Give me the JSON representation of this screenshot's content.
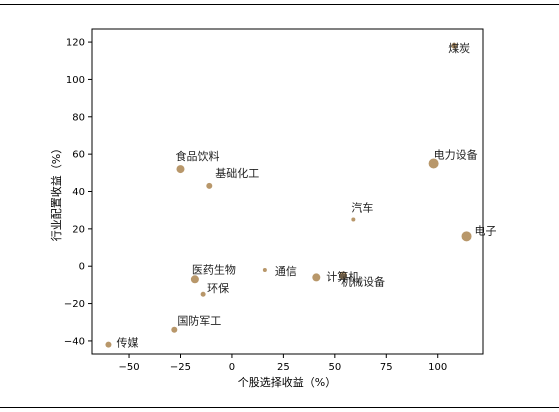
{
  "chart_data": {
    "type": "scatter",
    "xlabel": "个股选择收益（%）",
    "ylabel": "行业配置收益（%）",
    "xlim": [
      -68,
      122
    ],
    "ylim": [
      -47,
      127
    ],
    "xticks": [
      -50,
      -25,
      0,
      25,
      50,
      75,
      100
    ],
    "yticks": [
      -40,
      -20,
      0,
      20,
      40,
      60,
      80,
      100,
      120
    ],
    "grid": false,
    "marker_color": "#b8976a",
    "points": [
      {
        "label": "煤炭",
        "x": 108,
        "y": 118,
        "size": 3
      },
      {
        "label": "电力设备",
        "x": 98,
        "y": 55,
        "size": 5
      },
      {
        "label": "电子",
        "x": 114,
        "y": 16,
        "size": 5
      },
      {
        "label": "汽车",
        "x": 59,
        "y": 25,
        "size": 2
      },
      {
        "label": "食品饮料",
        "x": -25,
        "y": 52,
        "size": 4
      },
      {
        "label": "基础化工",
        "x": -11,
        "y": 43,
        "size": 3
      },
      {
        "label": "通信",
        "x": 16,
        "y": -2,
        "size": 2
      },
      {
        "label": "计算机",
        "x": 41,
        "y": -6,
        "size": 4
      },
      {
        "label": "机械设备",
        "x": 54,
        "y": -5,
        "size": 4
      },
      {
        "label": "医药生物",
        "x": -18,
        "y": -7,
        "size": 4
      },
      {
        "label": "环保",
        "x": -14,
        "y": -15,
        "size": 2.5
      },
      {
        "label": "国防军工",
        "x": -28,
        "y": -34,
        "size": 3
      },
      {
        "label": "传媒",
        "x": -60,
        "y": -42,
        "size": 3
      }
    ]
  }
}
